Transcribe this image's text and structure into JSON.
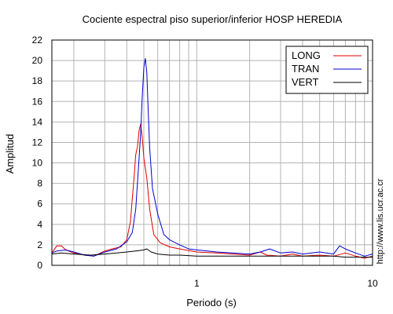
{
  "chart_data": {
    "type": "line",
    "title": "Cociente espectral piso superior/inferior  HOSP HEREDIA",
    "xlabel": "Periodo (s)",
    "ylabel": "Amplitud",
    "xscale": "log",
    "xlim": [
      0.15,
      10
    ],
    "ylim": [
      0,
      22
    ],
    "x_ticks": [
      1,
      10
    ],
    "y_ticks": [
      0,
      2,
      4,
      6,
      8,
      10,
      12,
      14,
      16,
      18,
      20,
      22
    ],
    "grid": true,
    "legend_position": "top-right",
    "annotation": "http://www.lis.ucr.ac.cr",
    "series": [
      {
        "name": "LONG",
        "color": "#e00000",
        "points": [
          [
            0.15,
            1.2
          ],
          [
            0.16,
            1.9
          ],
          [
            0.17,
            1.9
          ],
          [
            0.18,
            1.5
          ],
          [
            0.2,
            1.2
          ],
          [
            0.23,
            1.0
          ],
          [
            0.26,
            0.9
          ],
          [
            0.3,
            1.4
          ],
          [
            0.33,
            1.6
          ],
          [
            0.37,
            1.8
          ],
          [
            0.4,
            2.5
          ],
          [
            0.42,
            4.3
          ],
          [
            0.43,
            6.5
          ],
          [
            0.44,
            8.5
          ],
          [
            0.45,
            10.8
          ],
          [
            0.46,
            11.6
          ],
          [
            0.47,
            13.2
          ],
          [
            0.48,
            13.8
          ],
          [
            0.49,
            12.5
          ],
          [
            0.5,
            10.5
          ],
          [
            0.52,
            8.5
          ],
          [
            0.54,
            5.5
          ],
          [
            0.57,
            3.0
          ],
          [
            0.62,
            2.2
          ],
          [
            0.7,
            1.8
          ],
          [
            0.8,
            1.6
          ],
          [
            1.0,
            1.3
          ],
          [
            1.3,
            1.2
          ],
          [
            1.6,
            1.1
          ],
          [
            2.0,
            1.0
          ],
          [
            2.3,
            1.3
          ],
          [
            2.5,
            1.0
          ],
          [
            3.0,
            0.9
          ],
          [
            3.5,
            1.1
          ],
          [
            4.0,
            0.9
          ],
          [
            5.0,
            1.0
          ],
          [
            6.0,
            0.9
          ],
          [
            7.0,
            1.2
          ],
          [
            8.0,
            0.9
          ],
          [
            9.0,
            0.7
          ],
          [
            10.0,
            0.9
          ]
        ]
      },
      {
        "name": "TRAN",
        "color": "#0000d0",
        "points": [
          [
            0.15,
            1.2
          ],
          [
            0.16,
            1.4
          ],
          [
            0.18,
            1.5
          ],
          [
            0.2,
            1.3
          ],
          [
            0.23,
            1.0
          ],
          [
            0.26,
            0.9
          ],
          [
            0.3,
            1.3
          ],
          [
            0.35,
            1.6
          ],
          [
            0.4,
            2.3
          ],
          [
            0.43,
            3.2
          ],
          [
            0.45,
            5.5
          ],
          [
            0.47,
            10.5
          ],
          [
            0.48,
            13.0
          ],
          [
            0.49,
            16.5
          ],
          [
            0.5,
            19.3
          ],
          [
            0.51,
            20.2
          ],
          [
            0.52,
            18.8
          ],
          [
            0.53,
            15.0
          ],
          [
            0.54,
            11.5
          ],
          [
            0.56,
            7.5
          ],
          [
            0.6,
            5.0
          ],
          [
            0.65,
            3.0
          ],
          [
            0.7,
            2.5
          ],
          [
            0.8,
            2.0
          ],
          [
            0.9,
            1.6
          ],
          [
            1.0,
            1.5
          ],
          [
            1.3,
            1.3
          ],
          [
            1.6,
            1.2
          ],
          [
            2.0,
            1.1
          ],
          [
            2.3,
            1.3
          ],
          [
            2.6,
            1.6
          ],
          [
            3.0,
            1.2
          ],
          [
            3.5,
            1.3
          ],
          [
            4.0,
            1.1
          ],
          [
            5.0,
            1.3
          ],
          [
            6.0,
            1.1
          ],
          [
            6.5,
            1.9
          ],
          [
            7.0,
            1.6
          ],
          [
            8.0,
            1.2
          ],
          [
            9.0,
            0.9
          ],
          [
            10.0,
            1.1
          ]
        ]
      },
      {
        "name": "VERT",
        "color": "#000000",
        "points": [
          [
            0.15,
            1.1
          ],
          [
            0.17,
            1.2
          ],
          [
            0.2,
            1.1
          ],
          [
            0.25,
            1.0
          ],
          [
            0.3,
            1.1
          ],
          [
            0.35,
            1.2
          ],
          [
            0.4,
            1.3
          ],
          [
            0.45,
            1.4
          ],
          [
            0.5,
            1.5
          ],
          [
            0.52,
            1.6
          ],
          [
            0.55,
            1.3
          ],
          [
            0.6,
            1.1
          ],
          [
            0.7,
            1.0
          ],
          [
            0.8,
            1.0
          ],
          [
            1.0,
            0.9
          ],
          [
            1.3,
            0.9
          ],
          [
            1.6,
            0.9
          ],
          [
            2.0,
            0.9
          ],
          [
            2.5,
            0.9
          ],
          [
            3.0,
            0.9
          ],
          [
            3.5,
            0.9
          ],
          [
            4.0,
            0.9
          ],
          [
            5.0,
            0.9
          ],
          [
            6.0,
            0.9
          ],
          [
            7.0,
            0.8
          ],
          [
            8.0,
            0.8
          ],
          [
            9.0,
            0.8
          ],
          [
            10.0,
            0.8
          ]
        ]
      }
    ]
  }
}
